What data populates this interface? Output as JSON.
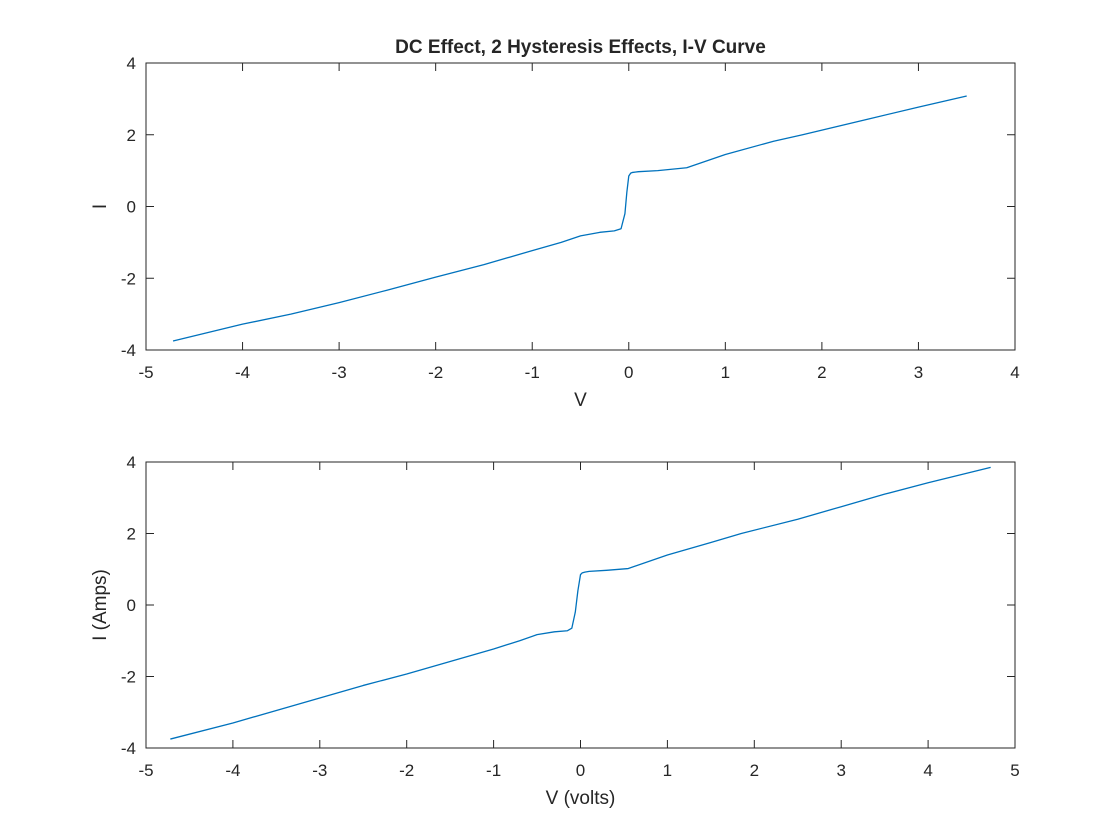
{
  "chart_data": [
    {
      "type": "line",
      "title": "DC Effect, 2 Hysteresis Effects, I-V Curve",
      "xlabel": "V",
      "ylabel": "I",
      "xlim": [
        -5,
        4
      ],
      "ylim": [
        -4,
        4
      ],
      "xticks": [
        -5,
        -4,
        -3,
        -2,
        -1,
        0,
        1,
        2,
        3,
        4
      ],
      "yticks": [
        -4,
        -2,
        0,
        2,
        4
      ],
      "grid": false,
      "series": [
        {
          "color": "#0072BD",
          "x": [
            -4.72,
            -4.0,
            -3.5,
            -3.0,
            -2.5,
            -2.0,
            -1.5,
            -1.0,
            -0.7,
            -0.5,
            -0.3,
            -0.15,
            -0.08,
            -0.04,
            -0.02,
            0.0,
            0.02,
            0.04,
            0.1,
            0.3,
            0.6,
            1.0,
            1.5,
            1.8,
            2.5,
            3.0,
            3.5
          ],
          "y": [
            -3.75,
            -3.28,
            -3.0,
            -2.68,
            -2.33,
            -1.97,
            -1.62,
            -1.23,
            -1.0,
            -0.82,
            -0.72,
            -0.68,
            -0.62,
            -0.2,
            0.4,
            0.85,
            0.93,
            0.95,
            0.97,
            1.0,
            1.08,
            1.45,
            1.82,
            2.0,
            2.45,
            2.77,
            3.08
          ]
        }
      ]
    },
    {
      "type": "line",
      "title": "",
      "xlabel": "V (volts)",
      "ylabel": "I (Amps)",
      "xlim": [
        -5,
        5
      ],
      "ylim": [
        -4,
        4
      ],
      "xticks": [
        -5,
        -4,
        -3,
        -2,
        -1,
        0,
        1,
        2,
        3,
        4,
        5
      ],
      "yticks": [
        -4,
        -2,
        0,
        2,
        4
      ],
      "grid": false,
      "series": [
        {
          "color": "#0072BD",
          "x": [
            -4.72,
            -4.0,
            -3.5,
            -3.0,
            -2.5,
            -2.0,
            -1.5,
            -1.0,
            -0.7,
            -0.5,
            -0.3,
            -0.15,
            -0.1,
            -0.06,
            -0.03,
            0.0,
            0.02,
            0.05,
            0.1,
            0.3,
            0.55,
            1.0,
            1.5,
            1.85,
            2.5,
            3.0,
            3.5,
            4.0,
            4.72
          ],
          "y": [
            -3.75,
            -3.3,
            -2.95,
            -2.6,
            -2.25,
            -1.93,
            -1.58,
            -1.23,
            -1.0,
            -0.83,
            -0.75,
            -0.72,
            -0.65,
            -0.2,
            0.4,
            0.85,
            0.9,
            0.92,
            0.94,
            0.97,
            1.02,
            1.4,
            1.75,
            2.0,
            2.4,
            2.75,
            3.1,
            3.42,
            3.85
          ]
        }
      ]
    }
  ]
}
